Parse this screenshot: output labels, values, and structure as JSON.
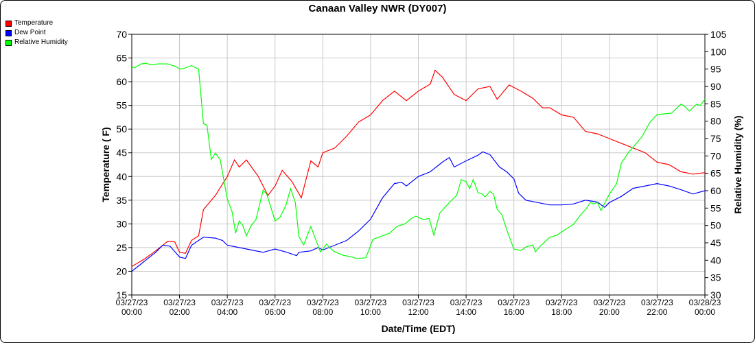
{
  "chart_data": {
    "type": "line",
    "title": "Canaan Valley NWR (DY007)",
    "xlabel": "Date/Time (EDT)",
    "ylabel": "Temperature ( F)",
    "y2label": "Relative Humidity (%)",
    "xlim": [
      0,
      24
    ],
    "ylim": [
      15,
      70
    ],
    "y2lim": [
      30,
      105
    ],
    "yticks": [
      15,
      20,
      25,
      30,
      35,
      40,
      45,
      50,
      55,
      60,
      65,
      70
    ],
    "y2ticks": [
      30,
      35,
      40,
      45,
      50,
      55,
      60,
      65,
      70,
      75,
      80,
      85,
      90,
      95,
      100,
      105
    ],
    "xticks": [
      {
        "h": 0,
        "date": "03/27/23",
        "time": "00:00"
      },
      {
        "h": 2,
        "date": "03/27/23",
        "time": "02:00"
      },
      {
        "h": 4,
        "date": "03/27/23",
        "time": "04:00"
      },
      {
        "h": 6,
        "date": "03/27/23",
        "time": "06:00"
      },
      {
        "h": 8,
        "date": "03/27/23",
        "time": "08:00"
      },
      {
        "h": 10,
        "date": "03/27/23",
        "time": "10:00"
      },
      {
        "h": 12,
        "date": "03/27/23",
        "time": "12:00"
      },
      {
        "h": 14,
        "date": "03/27/23",
        "time": "14:00"
      },
      {
        "h": 16,
        "date": "03/27/23",
        "time": "16:00"
      },
      {
        "h": 18,
        "date": "03/27/23",
        "time": "18:00"
      },
      {
        "h": 20,
        "date": "03/27/23",
        "time": "20:00"
      },
      {
        "h": 22,
        "date": "03/27/23",
        "time": "22:00"
      },
      {
        "h": 24,
        "date": "03/28/23",
        "time": "00:00"
      }
    ],
    "grid": true,
    "legend_position": "top-left",
    "series": [
      {
        "name": "Temperature",
        "color": "#ff0000",
        "axis": "left",
        "points": [
          [
            0,
            21
          ],
          [
            0.5,
            22.5
          ],
          [
            1,
            24.3
          ],
          [
            1.5,
            26.3
          ],
          [
            1.8,
            26.2
          ],
          [
            2,
            24
          ],
          [
            2.25,
            23.8
          ],
          [
            2.5,
            26.5
          ],
          [
            2.8,
            27.5
          ],
          [
            3,
            33
          ],
          [
            3.5,
            36
          ],
          [
            4,
            40
          ],
          [
            4.3,
            43.5
          ],
          [
            4.5,
            42
          ],
          [
            4.8,
            43.5
          ],
          [
            5.3,
            40
          ],
          [
            5.7,
            36
          ],
          [
            6,
            38
          ],
          [
            6.3,
            41.3
          ],
          [
            6.7,
            39
          ],
          [
            7.1,
            35.5
          ],
          [
            7.5,
            43.3
          ],
          [
            7.8,
            42
          ],
          [
            8,
            45
          ],
          [
            8.5,
            46
          ],
          [
            9,
            48.5
          ],
          [
            9.5,
            51.5
          ],
          [
            10,
            53
          ],
          [
            10.5,
            56
          ],
          [
            11,
            58
          ],
          [
            11.5,
            56
          ],
          [
            12,
            58
          ],
          [
            12.5,
            59.5
          ],
          [
            12.7,
            62.4
          ],
          [
            13,
            61
          ],
          [
            13.5,
            57.3
          ],
          [
            14,
            56
          ],
          [
            14.5,
            58.5
          ],
          [
            15,
            59
          ],
          [
            15.3,
            56.3
          ],
          [
            15.8,
            59.3
          ],
          [
            16.3,
            58
          ],
          [
            16.8,
            56.5
          ],
          [
            17.2,
            54.5
          ],
          [
            17.5,
            54.5
          ],
          [
            18,
            53
          ],
          [
            18.5,
            52.5
          ],
          [
            19,
            49.5
          ],
          [
            19.5,
            49
          ],
          [
            20,
            48
          ],
          [
            20.5,
            47
          ],
          [
            21,
            46
          ],
          [
            21.5,
            45
          ],
          [
            22,
            43
          ],
          [
            22.5,
            42.5
          ],
          [
            23,
            41
          ],
          [
            23.5,
            40.5
          ],
          [
            24,
            40.8
          ]
        ]
      },
      {
        "name": "Dew Point",
        "color": "#0000ff",
        "axis": "left",
        "points": [
          [
            0,
            20
          ],
          [
            0.5,
            22
          ],
          [
            1,
            24
          ],
          [
            1.3,
            25.5
          ],
          [
            1.6,
            25.3
          ],
          [
            2,
            23
          ],
          [
            2.25,
            22.7
          ],
          [
            2.5,
            25.5
          ],
          [
            3,
            27.2
          ],
          [
            3.5,
            27
          ],
          [
            3.8,
            26.5
          ],
          [
            4,
            25.5
          ],
          [
            4.5,
            25
          ],
          [
            5,
            24.5
          ],
          [
            5.5,
            24
          ],
          [
            6,
            24.7
          ],
          [
            6.5,
            24
          ],
          [
            6.9,
            23.3
          ],
          [
            7,
            24
          ],
          [
            7.5,
            24.3
          ],
          [
            7.8,
            25
          ],
          [
            8,
            24.5
          ],
          [
            8.5,
            25.5
          ],
          [
            9,
            26.5
          ],
          [
            9.5,
            28.5
          ],
          [
            10,
            31
          ],
          [
            10.5,
            35.5
          ],
          [
            11,
            38.5
          ],
          [
            11.3,
            38.8
          ],
          [
            11.5,
            38
          ],
          [
            12,
            40
          ],
          [
            12.5,
            41
          ],
          [
            13,
            43
          ],
          [
            13.3,
            44
          ],
          [
            13.5,
            42
          ],
          [
            14,
            43.3
          ],
          [
            14.5,
            44.5
          ],
          [
            14.7,
            45.2
          ],
          [
            15,
            44.6
          ],
          [
            15.4,
            42
          ],
          [
            15.7,
            41
          ],
          [
            16,
            39.5
          ],
          [
            16.2,
            36.5
          ],
          [
            16.5,
            35
          ],
          [
            17,
            34.5
          ],
          [
            17.5,
            34
          ],
          [
            18,
            34
          ],
          [
            18.5,
            34.2
          ],
          [
            19,
            35
          ],
          [
            19.5,
            34.6
          ],
          [
            19.8,
            33.5
          ],
          [
            20,
            34.5
          ],
          [
            20.5,
            35.8
          ],
          [
            21,
            37.5
          ],
          [
            21.5,
            38
          ],
          [
            22,
            38.5
          ],
          [
            22.5,
            38
          ],
          [
            23,
            37.2
          ],
          [
            23.5,
            36.3
          ],
          [
            24,
            37
          ]
        ]
      },
      {
        "name": "Relative Humidity",
        "color": "#00ff00",
        "axis": "right",
        "points": [
          [
            0,
            95.5
          ],
          [
            0.15,
            95.5
          ],
          [
            0.4,
            96.5
          ],
          [
            0.6,
            96.7
          ],
          [
            0.8,
            96.2
          ],
          [
            1.1,
            96.5
          ],
          [
            1.5,
            96.5
          ],
          [
            1.85,
            95.7
          ],
          [
            2,
            95
          ],
          [
            2.2,
            95.2
          ],
          [
            2.5,
            96
          ],
          [
            2.8,
            95
          ],
          [
            3,
            79.3
          ],
          [
            3.15,
            78.8
          ],
          [
            3.33,
            69
          ],
          [
            3.5,
            70.8
          ],
          [
            3.7,
            69
          ],
          [
            4,
            57.6
          ],
          [
            4.2,
            54
          ],
          [
            4.35,
            47.8
          ],
          [
            4.5,
            51.3
          ],
          [
            4.65,
            50
          ],
          [
            4.8,
            47
          ],
          [
            5,
            50
          ],
          [
            5.2,
            51.7
          ],
          [
            5.5,
            60.2
          ],
          [
            5.65,
            59
          ],
          [
            5.85,
            54.7
          ],
          [
            6,
            51.3
          ],
          [
            6.2,
            52.3
          ],
          [
            6.45,
            55.7
          ],
          [
            6.65,
            60.6
          ],
          [
            6.85,
            56.6
          ],
          [
            7,
            46.8
          ],
          [
            7.2,
            44.4
          ],
          [
            7.5,
            49.7
          ],
          [
            7.7,
            46
          ],
          [
            7.9,
            42.4
          ],
          [
            8.15,
            44.6
          ],
          [
            8.45,
            42.6
          ],
          [
            8.85,
            41.4
          ],
          [
            9.2,
            41
          ],
          [
            9.4,
            40.5
          ],
          [
            9.8,
            40.7
          ],
          [
            10.1,
            46
          ],
          [
            10.4,
            46.8
          ],
          [
            10.8,
            47.8
          ],
          [
            11.1,
            49.7
          ],
          [
            11.45,
            50.5
          ],
          [
            11.7,
            52
          ],
          [
            11.9,
            52.7
          ],
          [
            12.2,
            51.7
          ],
          [
            12.45,
            52
          ],
          [
            12.65,
            47.2
          ],
          [
            12.9,
            53.6
          ],
          [
            13.3,
            56.6
          ],
          [
            13.6,
            58.6
          ],
          [
            13.8,
            63.2
          ],
          [
            14,
            62.6
          ],
          [
            14.15,
            60.6
          ],
          [
            14.3,
            63.2
          ],
          [
            14.5,
            59.4
          ],
          [
            14.65,
            59.2
          ],
          [
            14.8,
            58.2
          ],
          [
            15,
            59.8
          ],
          [
            15.15,
            59
          ],
          [
            15.3,
            54.7
          ],
          [
            15.5,
            53.1
          ],
          [
            15.7,
            48.8
          ],
          [
            16,
            43.2
          ],
          [
            16.3,
            42.8
          ],
          [
            16.5,
            43.8
          ],
          [
            16.8,
            44.4
          ],
          [
            16.9,
            42.4
          ],
          [
            17.1,
            44
          ],
          [
            17.5,
            46.6
          ],
          [
            17.8,
            47.2
          ],
          [
            18.1,
            48.6
          ],
          [
            18.5,
            50.3
          ],
          [
            18.8,
            53.1
          ],
          [
            19.05,
            55
          ],
          [
            19.2,
            56.6
          ],
          [
            19.35,
            56.2
          ],
          [
            19.5,
            56.6
          ],
          [
            19.65,
            54.3
          ],
          [
            20,
            59
          ],
          [
            20.3,
            62
          ],
          [
            20.5,
            67.9
          ],
          [
            20.8,
            71
          ],
          [
            21.35,
            75.4
          ],
          [
            21.7,
            79.7
          ],
          [
            22,
            81.9
          ],
          [
            22.6,
            82.3
          ],
          [
            23,
            84.9
          ],
          [
            23.15,
            84.3
          ],
          [
            23.35,
            82.9
          ],
          [
            23.65,
            84.9
          ],
          [
            23.8,
            84.5
          ],
          [
            24,
            86.3
          ]
        ]
      }
    ]
  }
}
